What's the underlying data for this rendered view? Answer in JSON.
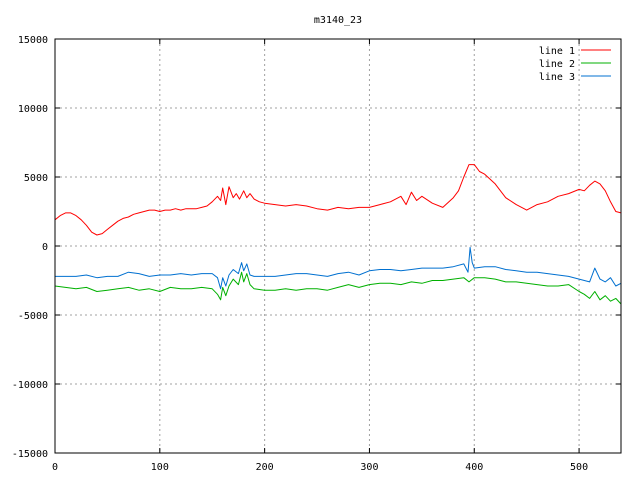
{
  "chart_data": {
    "type": "line",
    "title": "m3140_23",
    "xlabel": "",
    "ylabel": "",
    "xlim": [
      0,
      540
    ],
    "ylim": [
      -15000,
      15000
    ],
    "x_ticks": [
      0,
      100,
      200,
      300,
      400,
      500
    ],
    "y_ticks": [
      -15000,
      -10000,
      -5000,
      0,
      5000,
      10000,
      15000
    ],
    "x_tick_labels": [
      "0",
      "100",
      "200",
      "300",
      "400",
      "500"
    ],
    "y_tick_labels": [
      "-15000",
      "-10000",
      "-5000",
      "0",
      "5000",
      "10000",
      "15000"
    ],
    "grid": true,
    "legend_position": "top-right",
    "series": [
      {
        "name": "line 1",
        "color": "#ff0000",
        "x": [
          0,
          5,
          10,
          15,
          20,
          25,
          30,
          35,
          40,
          45,
          50,
          55,
          60,
          65,
          70,
          75,
          80,
          85,
          90,
          95,
          100,
          105,
          110,
          115,
          120,
          125,
          130,
          135,
          140,
          145,
          150,
          155,
          158,
          160,
          163,
          166,
          170,
          173,
          176,
          180,
          183,
          186,
          190,
          195,
          200,
          210,
          220,
          230,
          240,
          250,
          260,
          270,
          280,
          290,
          300,
          310,
          320,
          330,
          335,
          340,
          345,
          350,
          360,
          370,
          380,
          385,
          390,
          395,
          400,
          405,
          410,
          420,
          430,
          440,
          450,
          460,
          470,
          480,
          490,
          500,
          505,
          510,
          515,
          520,
          525,
          530,
          535,
          540
        ],
        "y": [
          1900,
          2200,
          2400,
          2400,
          2200,
          1900,
          1500,
          1000,
          800,
          900,
          1200,
          1500,
          1800,
          2000,
          2100,
          2300,
          2400,
          2500,
          2600,
          2600,
          2500,
          2600,
          2600,
          2700,
          2600,
          2700,
          2700,
          2700,
          2800,
          2900,
          3200,
          3600,
          3300,
          4200,
          3000,
          4300,
          3500,
          3800,
          3400,
          4000,
          3500,
          3800,
          3400,
          3200,
          3100,
          3000,
          2900,
          3000,
          2900,
          2700,
          2600,
          2800,
          2700,
          2800,
          2800,
          3000,
          3200,
          3600,
          3000,
          3900,
          3300,
          3600,
          3100,
          2800,
          3500,
          4000,
          5000,
          5900,
          5900,
          5400,
          5200,
          4500,
          3500,
          3000,
          2600,
          3000,
          3200,
          3600,
          3800,
          4100,
          4000,
          4400,
          4700,
          4500,
          4000,
          3200,
          2500,
          2400
        ]
      },
      {
        "name": "line 2",
        "color": "#00b000",
        "x": [
          0,
          10,
          20,
          30,
          40,
          50,
          60,
          70,
          80,
          90,
          100,
          110,
          120,
          130,
          140,
          150,
          155,
          158,
          160,
          163,
          166,
          170,
          175,
          178,
          180,
          183,
          186,
          190,
          200,
          210,
          220,
          230,
          240,
          250,
          260,
          270,
          280,
          290,
          300,
          310,
          320,
          330,
          340,
          350,
          360,
          370,
          380,
          390,
          395,
          400,
          410,
          420,
          430,
          440,
          450,
          460,
          470,
          480,
          490,
          500,
          505,
          510,
          515,
          520,
          525,
          530,
          535,
          540
        ],
        "y": [
          -2900,
          -3000,
          -3100,
          -3000,
          -3300,
          -3200,
          -3100,
          -3000,
          -3200,
          -3100,
          -3300,
          -3000,
          -3100,
          -3100,
          -3000,
          -3100,
          -3500,
          -3900,
          -3000,
          -3600,
          -2900,
          -2400,
          -2800,
          -1900,
          -2600,
          -2000,
          -2800,
          -3100,
          -3200,
          -3200,
          -3100,
          -3200,
          -3100,
          -3100,
          -3200,
          -3000,
          -2800,
          -3000,
          -2800,
          -2700,
          -2700,
          -2800,
          -2600,
          -2700,
          -2500,
          -2500,
          -2400,
          -2300,
          -2600,
          -2300,
          -2300,
          -2400,
          -2600,
          -2600,
          -2700,
          -2800,
          -2900,
          -2900,
          -2800,
          -3300,
          -3500,
          -3800,
          -3300,
          -3900,
          -3600,
          -4000,
          -3800,
          -4200
        ]
      },
      {
        "name": "line 3",
        "color": "#0070d0",
        "x": [
          0,
          10,
          20,
          30,
          40,
          50,
          60,
          70,
          80,
          90,
          100,
          110,
          120,
          130,
          140,
          150,
          155,
          158,
          160,
          163,
          166,
          170,
          175,
          178,
          180,
          183,
          186,
          190,
          200,
          210,
          220,
          230,
          240,
          250,
          260,
          270,
          280,
          290,
          300,
          310,
          320,
          330,
          340,
          350,
          360,
          370,
          380,
          390,
          394,
          396,
          398,
          400,
          410,
          420,
          430,
          440,
          450,
          460,
          470,
          480,
          490,
          500,
          510,
          515,
          520,
          525,
          530,
          535,
          540
        ],
        "y": [
          -2200,
          -2200,
          -2200,
          -2100,
          -2300,
          -2200,
          -2200,
          -1900,
          -2000,
          -2200,
          -2100,
          -2100,
          -2000,
          -2100,
          -2000,
          -2000,
          -2300,
          -3100,
          -2300,
          -2900,
          -2100,
          -1700,
          -2000,
          -1200,
          -1800,
          -1300,
          -2100,
          -2200,
          -2200,
          -2200,
          -2100,
          -2000,
          -2000,
          -2100,
          -2200,
          -2000,
          -1900,
          -2100,
          -1800,
          -1700,
          -1700,
          -1800,
          -1700,
          -1600,
          -1600,
          -1600,
          -1500,
          -1300,
          -1900,
          -100,
          -1200,
          -1600,
          -1500,
          -1500,
          -1700,
          -1800,
          -1900,
          -1900,
          -2000,
          -2100,
          -2200,
          -2400,
          -2600,
          -1600,
          -2400,
          -2600,
          -2300,
          -2900,
          -2700
        ]
      }
    ]
  }
}
